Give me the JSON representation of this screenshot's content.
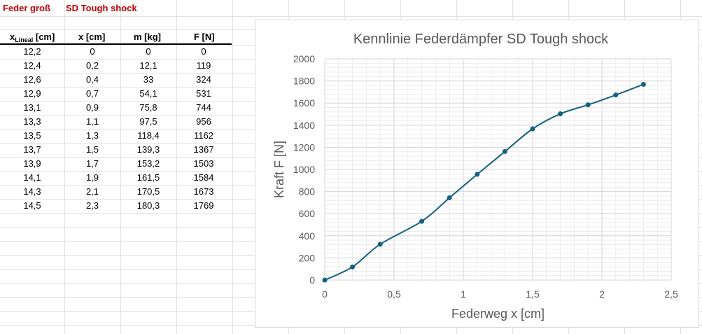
{
  "sheet": {
    "title_left": "Feder groß",
    "title_right": "SD Tough shock",
    "headers": {
      "x_lineal_main": "x",
      "x_lineal_sub": "Lineal",
      "x_lineal_unit": " [cm]",
      "x": "x [cm]",
      "m": "m [kg]",
      "F": "F [N]"
    },
    "rows": [
      [
        "12,2",
        "0",
        "0",
        "0"
      ],
      [
        "12,4",
        "0,2",
        "12,1",
        "119"
      ],
      [
        "12,6",
        "0,4",
        "33",
        "324"
      ],
      [
        "12,9",
        "0,7",
        "54,1",
        "531"
      ],
      [
        "13,1",
        "0,9",
        "75,8",
        "744"
      ],
      [
        "13,3",
        "1,1",
        "97,5",
        "956"
      ],
      [
        "13,5",
        "1,3",
        "118,4",
        "1162"
      ],
      [
        "13,7",
        "1,5",
        "139,3",
        "1367"
      ],
      [
        "13,9",
        "1,7",
        "153,2",
        "1503"
      ],
      [
        "14,1",
        "1,9",
        "161,5",
        "1584"
      ],
      [
        "14,3",
        "2,1",
        "170,5",
        "1673"
      ],
      [
        "14,5",
        "2,3",
        "180,3",
        "1769"
      ]
    ]
  },
  "chart_data": {
    "type": "line",
    "title": "Kennlinie Federdämpfer SD Tough shock",
    "xlabel": "Federweg x [cm]",
    "ylabel": "Kraft F [N]",
    "x": [
      0,
      0.2,
      0.4,
      0.7,
      0.9,
      1.1,
      1.3,
      1.5,
      1.7,
      1.9,
      2.1,
      2.3
    ],
    "y": [
      0,
      119,
      324,
      531,
      744,
      956,
      1162,
      1367,
      1503,
      1584,
      1673,
      1769
    ],
    "xlim": [
      0,
      2.5
    ],
    "ylim": [
      0,
      2000
    ],
    "xticks": [
      0,
      0.5,
      1,
      1.5,
      2,
      2.5
    ],
    "xtick_labels": [
      "0",
      "0,5",
      "1",
      "1,5",
      "2",
      "2,5"
    ],
    "yticks": [
      0,
      200,
      400,
      600,
      800,
      1000,
      1200,
      1400,
      1600,
      1800,
      2000
    ],
    "ytick_labels": [
      "0",
      "200",
      "400",
      "600",
      "800",
      "1000",
      "1200",
      "1400",
      "1600",
      "1800",
      "2000"
    ],
    "grid": true,
    "minor_grid": true,
    "smooth": true,
    "legend": "none",
    "color": "#156082"
  }
}
